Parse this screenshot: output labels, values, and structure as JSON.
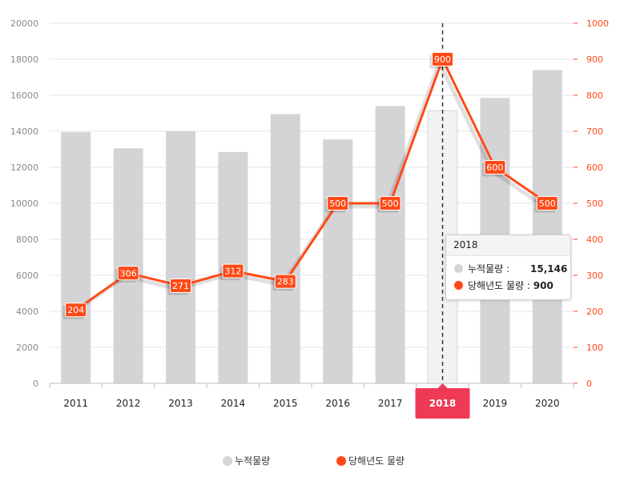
{
  "chart_data": {
    "type": "bar",
    "categories": [
      "2011",
      "2012",
      "2013",
      "2014",
      "2015",
      "2016",
      "2017",
      "2018",
      "2019",
      "2020"
    ],
    "series": [
      {
        "name": "누적물량",
        "type": "bar",
        "axis": "left",
        "values": [
          13950,
          13050,
          14000,
          12850,
          14950,
          13550,
          15400,
          15146,
          15850,
          17400
        ]
      },
      {
        "name": "당해년도 물량",
        "type": "line",
        "axis": "right",
        "values": [
          204,
          306,
          271,
          312,
          283,
          500,
          500,
          900,
          600,
          500
        ]
      }
    ],
    "left_axis": {
      "ylim": [
        0,
        20000
      ],
      "ticks": [
        "0",
        "2000",
        "4000",
        "6000",
        "8000",
        "10000",
        "12000",
        "14000",
        "16000",
        "18000",
        "20000"
      ]
    },
    "right_axis": {
      "ylim": [
        0,
        1000
      ],
      "ticks": [
        "0",
        "100",
        "200",
        "300",
        "400",
        "500",
        "600",
        "700",
        "800",
        "900",
        "1000"
      ]
    },
    "highlighted_category": "2018",
    "grid": true,
    "legend": "bottom",
    "colors": {
      "bar": "#d4d4d6",
      "bar_highlight": "#f2f2f2",
      "line": "#ff4a17",
      "label_bg": "#ff4a17",
      "highlight_badge": "#ee3a55",
      "grid": "#e6e6e6",
      "right_axis": "#ff4a17",
      "left_axis": "#8a8a8a"
    }
  },
  "tooltip": {
    "title": "2018",
    "rows": [
      {
        "label": "누적물량 :",
        "value": "15,146"
      },
      {
        "label": "당해년도 물량 :",
        "value": "900"
      }
    ]
  },
  "legend": {
    "items": [
      {
        "label": "누적물량"
      },
      {
        "label": "당해년도 물량"
      }
    ]
  }
}
